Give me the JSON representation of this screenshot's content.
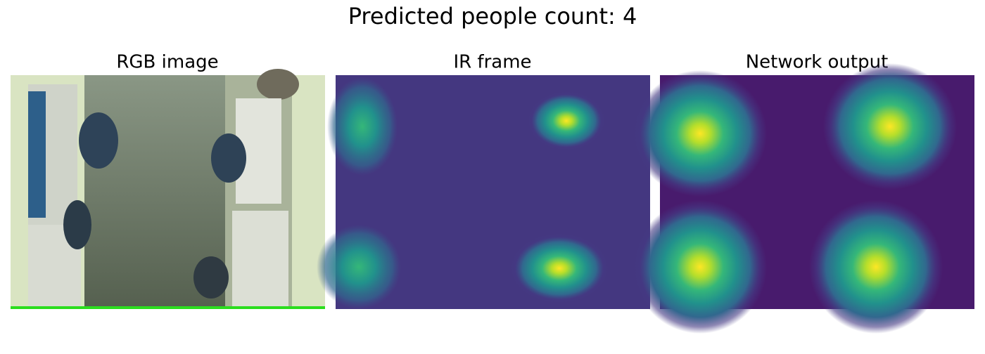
{
  "title": "Predicted people count: 4",
  "panels": [
    {
      "title": "RGB image"
    },
    {
      "title": "IR frame"
    },
    {
      "title": "Network output"
    }
  ]
}
